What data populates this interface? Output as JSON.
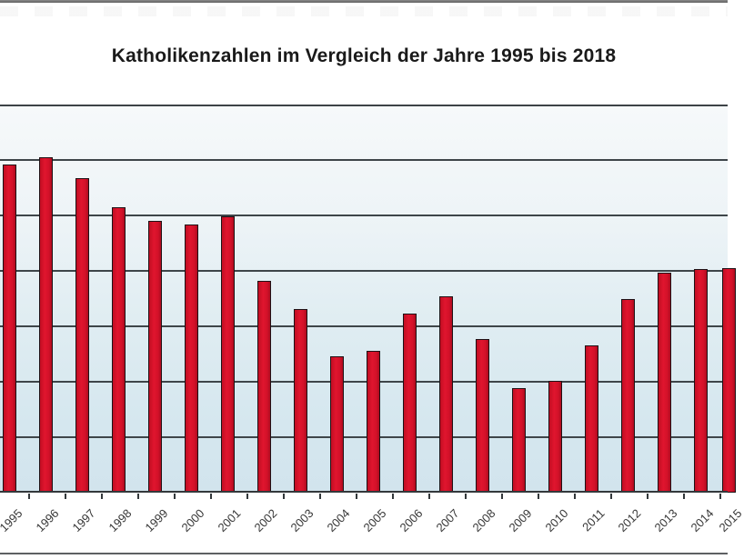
{
  "chart_data": {
    "type": "bar",
    "title": "Katholikenzahlen im Vergleich der Jahre 1995 bis 2018",
    "categories": [
      "1995",
      "1996",
      "1997",
      "1998",
      "1999",
      "2000",
      "2001",
      "2002",
      "2003",
      "2004",
      "2005",
      "2006",
      "2007",
      "2008",
      "2009",
      "2010",
      "2011",
      "2012",
      "2013",
      "2014",
      "2015"
    ],
    "values_gridline_units": [
      5.92,
      6.05,
      5.67,
      5.15,
      4.9,
      4.84,
      4.98,
      3.82,
      3.31,
      2.46,
      2.56,
      3.23,
      3.54,
      2.77,
      1.89,
      2.02,
      2.66,
      3.49,
      3.97,
      4.03,
      4.05
    ],
    "xlabel": "",
    "ylabel": "",
    "ylim_gridline_units": [
      0,
      7
    ],
    "grid": "horizontal",
    "legend": "none",
    "y_tick_labels_visible": false,
    "x_tick_label_rotation_deg": -45,
    "edge_crop": {
      "left_partial_category": "1995",
      "right_partial_category": "2015"
    },
    "colors": {
      "bar_fill": "#d31129",
      "bar_border": "#1e1216",
      "gridline": "#3e4549",
      "plot_bg_top": "#f6f9fa",
      "plot_bg_bottom": "#d2e4ed",
      "title_text": "#1a1a1a",
      "axis_label_text": "#363636"
    }
  }
}
